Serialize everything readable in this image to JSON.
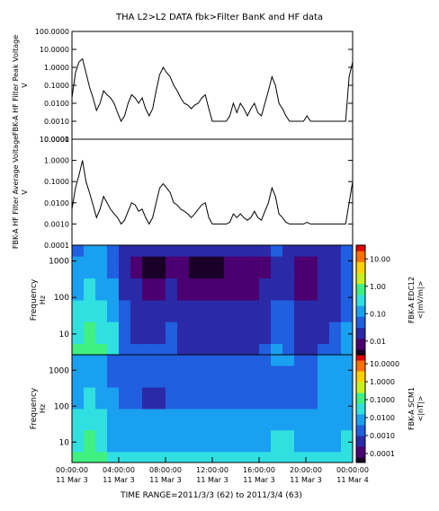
{
  "title": "THA  L2>L2 DATA  fbk>Filter BanK and HF data",
  "time_range_label": "TIME RANGE=2011/3/3 (62) to 2011/3/4 (63)",
  "colors": {
    "line": "#000000",
    "colormap": [
      "#1a0028",
      "#4a0070",
      "#2a2aa8",
      "#1f5fe0",
      "#1aa0f0",
      "#30e0e0",
      "#40f080",
      "#c8f020",
      "#ffd000",
      "#ff7000",
      "#e00000"
    ]
  },
  "chart_data": [
    {
      "type": "line",
      "ylabel": "FBK-A HF Filter Peak Voltage",
      "yunit": "V",
      "yscale": "log",
      "ylim": [
        0.0001,
        100
      ],
      "yticks": [
        "0.0001",
        "0.0010",
        "0.0100",
        "0.1000",
        "1.0000",
        "10.0000",
        "100.0000"
      ],
      "x_hours": [
        0,
        0.3,
        0.6,
        0.9,
        1.2,
        1.5,
        1.8,
        2.1,
        2.4,
        2.7,
        3.0,
        3.3,
        3.6,
        3.9,
        4.2,
        4.5,
        4.8,
        5.1,
        5.4,
        5.7,
        6.0,
        6.3,
        6.6,
        6.9,
        7.2,
        7.5,
        7.8,
        8.1,
        8.4,
        8.7,
        9.0,
        9.3,
        9.6,
        9.9,
        10.2,
        10.5,
        10.8,
        11.1,
        11.4,
        11.7,
        12.0,
        12.3,
        12.6,
        12.9,
        13.2,
        13.5,
        13.8,
        14.1,
        14.4,
        14.7,
        15.0,
        15.3,
        15.6,
        15.9,
        16.2,
        16.5,
        16.8,
        17.1,
        17.4,
        17.7,
        18.0,
        18.3,
        18.6,
        18.9,
        19.2,
        19.5,
        19.8,
        20.1,
        20.4,
        20.7,
        21.0,
        21.3,
        21.6,
        21.9,
        22.2,
        22.5,
        22.8,
        23.1,
        23.4,
        23.7,
        24.0
      ],
      "values": [
        0.02,
        0.5,
        2.0,
        3.0,
        0.5,
        0.08,
        0.02,
        0.004,
        0.01,
        0.05,
        0.03,
        0.02,
        0.01,
        0.003,
        0.001,
        0.002,
        0.01,
        0.03,
        0.02,
        0.01,
        0.02,
        0.005,
        0.002,
        0.005,
        0.05,
        0.4,
        1.0,
        0.5,
        0.3,
        0.1,
        0.05,
        0.02,
        0.01,
        0.008,
        0.005,
        0.008,
        0.01,
        0.02,
        0.03,
        0.005,
        0.001,
        0.001,
        0.001,
        0.001,
        0.001,
        0.002,
        0.01,
        0.003,
        0.01,
        0.005,
        0.002,
        0.005,
        0.01,
        0.003,
        0.002,
        0.01,
        0.05,
        0.3,
        0.1,
        0.01,
        0.005,
        0.002,
        0.001,
        0.001,
        0.001,
        0.001,
        0.001,
        0.002,
        0.001,
        0.001,
        0.001,
        0.001,
        0.001,
        0.001,
        0.001,
        0.001,
        0.001,
        0.001,
        0.001,
        0.3,
        2.0
      ]
    },
    {
      "type": "line",
      "ylabel": "FBK-A HF Filter Average Voltage",
      "yunit": "V",
      "yscale": "log",
      "ylim": [
        0.0001,
        10
      ],
      "yticks": [
        "0.0001",
        "0.0010",
        "0.0100",
        "0.1000",
        "1.0000",
        "10.0000"
      ],
      "x_hours": [
        0,
        0.3,
        0.6,
        0.9,
        1.2,
        1.5,
        1.8,
        2.1,
        2.4,
        2.7,
        3.0,
        3.3,
        3.6,
        3.9,
        4.2,
        4.5,
        4.8,
        5.1,
        5.4,
        5.7,
        6.0,
        6.3,
        6.6,
        6.9,
        7.2,
        7.5,
        7.8,
        8.1,
        8.4,
        8.7,
        9.0,
        9.3,
        9.6,
        9.9,
        10.2,
        10.5,
        10.8,
        11.1,
        11.4,
        11.7,
        12.0,
        12.3,
        12.6,
        12.9,
        13.2,
        13.5,
        13.8,
        14.1,
        14.4,
        14.7,
        15.0,
        15.3,
        15.6,
        15.9,
        16.2,
        16.5,
        16.8,
        17.1,
        17.4,
        17.7,
        18.0,
        18.3,
        18.6,
        18.9,
        19.2,
        19.5,
        19.8,
        20.1,
        20.4,
        20.7,
        21.0,
        21.3,
        21.6,
        21.9,
        22.2,
        22.5,
        22.8,
        23.1,
        23.4,
        23.7,
        24.0
      ],
      "values": [
        0.005,
        0.05,
        0.2,
        1.0,
        0.1,
        0.03,
        0.008,
        0.002,
        0.005,
        0.02,
        0.01,
        0.005,
        0.003,
        0.002,
        0.001,
        0.0015,
        0.004,
        0.01,
        0.008,
        0.004,
        0.005,
        0.002,
        0.001,
        0.002,
        0.01,
        0.05,
        0.08,
        0.05,
        0.03,
        0.01,
        0.008,
        0.005,
        0.004,
        0.003,
        0.002,
        0.003,
        0.005,
        0.008,
        0.01,
        0.002,
        0.001,
        0.001,
        0.001,
        0.001,
        0.001,
        0.0012,
        0.003,
        0.002,
        0.003,
        0.002,
        0.0015,
        0.002,
        0.004,
        0.002,
        0.0015,
        0.004,
        0.01,
        0.05,
        0.02,
        0.003,
        0.002,
        0.0012,
        0.001,
        0.001,
        0.001,
        0.001,
        0.001,
        0.0012,
        0.001,
        0.001,
        0.001,
        0.001,
        0.001,
        0.001,
        0.001,
        0.001,
        0.001,
        0.001,
        0.001,
        0.01,
        0.1
      ]
    },
    {
      "type": "heatmap",
      "ylabel": "Frequency",
      "yunit": "Hz",
      "yticks": [
        "10",
        "100",
        "1000"
      ],
      "colorbar_label": "FBK-A EDC12",
      "colorbar_unit": "<|mV/m|>",
      "colorbar_ticks": [
        "0.01",
        "0.10",
        "1.00",
        "10.00"
      ],
      "frequency_bins_hz": [
        2.7,
        11,
        43,
        170,
        680,
        2700
      ],
      "time_hours": [
        0,
        1,
        2,
        3,
        4,
        5,
        6,
        7,
        8,
        9,
        10,
        11,
        12,
        13,
        14,
        15,
        16,
        17,
        18,
        19,
        20,
        21,
        22,
        23
      ],
      "levels_0_to_1": [
        [
          0.55,
          0.6,
          0.55,
          0.5,
          0.3,
          0.25,
          0.25,
          0.25,
          0.28,
          0.22,
          0.2,
          0.2,
          0.18,
          0.18,
          0.22,
          0.22,
          0.25,
          0.35,
          0.3,
          0.2,
          0.2,
          0.25,
          0.28,
          0.4
        ],
        [
          0.5,
          0.55,
          0.5,
          0.45,
          0.28,
          0.22,
          0.22,
          0.22,
          0.25,
          0.2,
          0.18,
          0.18,
          0.16,
          0.16,
          0.2,
          0.2,
          0.22,
          0.3,
          0.28,
          0.18,
          0.18,
          0.22,
          0.25,
          0.35
        ],
        [
          0.45,
          0.5,
          0.45,
          0.4,
          0.25,
          0.2,
          0.2,
          0.2,
          0.22,
          0.18,
          0.16,
          0.16,
          0.15,
          0.15,
          0.18,
          0.18,
          0.2,
          0.28,
          0.25,
          0.16,
          0.16,
          0.2,
          0.22,
          0.32
        ],
        [
          0.4,
          0.45,
          0.4,
          0.35,
          0.22,
          0.18,
          0.12,
          0.12,
          0.15,
          0.12,
          0.1,
          0.1,
          0.1,
          0.1,
          0.12,
          0.12,
          0.15,
          0.22,
          0.2,
          0.14,
          0.14,
          0.18,
          0.2,
          0.3
        ],
        [
          0.35,
          0.4,
          0.35,
          0.3,
          0.15,
          0.08,
          0.04,
          0.04,
          0.06,
          0.05,
          0.04,
          0.04,
          0.04,
          0.05,
          0.06,
          0.06,
          0.1,
          0.15,
          0.15,
          0.12,
          0.12,
          0.16,
          0.18,
          0.28
        ],
        [
          0.3,
          0.4,
          0.35,
          0.3,
          0.2,
          0.15,
          0.15,
          0.18,
          0.2,
          0.18,
          0.15,
          0.15,
          0.15,
          0.15,
          0.18,
          0.18,
          0.2,
          0.25,
          0.22,
          0.18,
          0.18,
          0.2,
          0.22,
          0.3
        ]
      ]
    },
    {
      "type": "heatmap",
      "ylabel": "Frequency",
      "yunit": "Hz",
      "yticks": [
        "10",
        "100",
        "1000"
      ],
      "colorbar_label": "FBK-A SCM1",
      "colorbar_unit": "<|nT|>",
      "colorbar_ticks": [
        "0.0001",
        "0.0010",
        "0.0100",
        "0.1000",
        "1.0000",
        "10.0000"
      ],
      "frequency_bins_hz": [
        2.7,
        11,
        43,
        170,
        680,
        2700
      ],
      "time_hours": [
        0,
        1,
        2,
        3,
        4,
        5,
        6,
        7,
        8,
        9,
        10,
        11,
        12,
        13,
        14,
        15,
        16,
        17,
        18,
        19,
        20,
        21,
        22,
        23
      ],
      "levels_0_to_1": [
        [
          0.55,
          0.62,
          0.6,
          0.45,
          0.5,
          0.45,
          0.45,
          0.45,
          0.45,
          0.45,
          0.45,
          0.45,
          0.45,
          0.45,
          0.45,
          0.45,
          0.45,
          0.48,
          0.48,
          0.45,
          0.45,
          0.45,
          0.45,
          0.5
        ],
        [
          0.5,
          0.58,
          0.52,
          0.42,
          0.42,
          0.42,
          0.42,
          0.42,
          0.42,
          0.42,
          0.42,
          0.42,
          0.42,
          0.42,
          0.42,
          0.42,
          0.42,
          0.45,
          0.45,
          0.42,
          0.42,
          0.42,
          0.42,
          0.45
        ],
        [
          0.45,
          0.5,
          0.48,
          0.4,
          0.4,
          0.4,
          0.4,
          0.4,
          0.4,
          0.4,
          0.4,
          0.4,
          0.4,
          0.4,
          0.4,
          0.4,
          0.4,
          0.42,
          0.42,
          0.4,
          0.4,
          0.4,
          0.4,
          0.42
        ],
        [
          0.42,
          0.45,
          0.42,
          0.35,
          0.32,
          0.25,
          0.22,
          0.22,
          0.25,
          0.25,
          0.25,
          0.25,
          0.25,
          0.25,
          0.25,
          0.25,
          0.28,
          0.3,
          0.32,
          0.32,
          0.32,
          0.35,
          0.38,
          0.4
        ],
        [
          0.38,
          0.42,
          0.4,
          0.3,
          0.3,
          0.28,
          0.28,
          0.28,
          0.28,
          0.28,
          0.28,
          0.28,
          0.28,
          0.28,
          0.28,
          0.28,
          0.3,
          0.32,
          0.32,
          0.32,
          0.32,
          0.35,
          0.38,
          0.4
        ],
        [
          0.35,
          0.4,
          0.38,
          0.3,
          0.32,
          0.3,
          0.3,
          0.3,
          0.3,
          0.3,
          0.3,
          0.3,
          0.3,
          0.3,
          0.3,
          0.3,
          0.32,
          0.35,
          0.35,
          0.33,
          0.33,
          0.35,
          0.38,
          0.4
        ]
      ]
    }
  ],
  "time_axis": {
    "tick_times": [
      "00:00:00",
      "04:00:00",
      "08:00:00",
      "12:00:00",
      "16:00:00",
      "20:00:00",
      "00:00:00"
    ],
    "tick_dates": [
      "11 Mar  3",
      "11 Mar  3",
      "11 Mar  3",
      "11 Mar  3",
      "11 Mar  3",
      "11 Mar  3",
      "11 Mar  4"
    ]
  }
}
